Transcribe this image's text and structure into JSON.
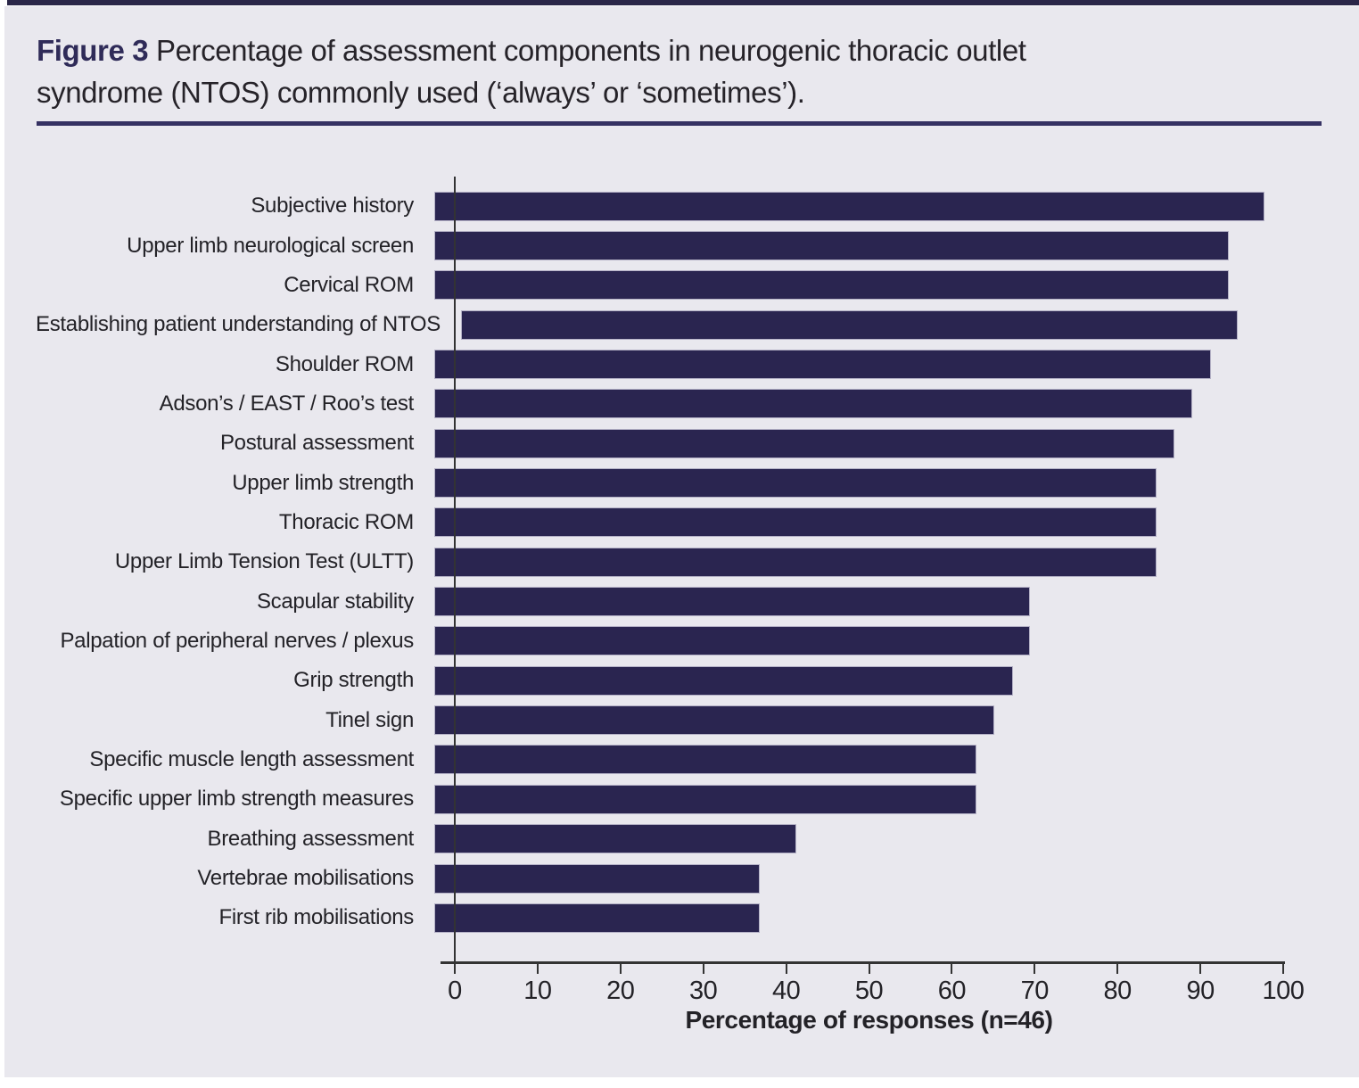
{
  "figure": {
    "label": "Figure 3",
    "title_line1_rest": "Percentage of assessment components in neurogenic thoracic outlet",
    "title_line2": "syndrome (NTOS) commonly used (‘always’ or ‘sometimes’)."
  },
  "chart_data": {
    "type": "bar",
    "orientation": "horizontal",
    "title": "Figure 3 Percentage of assessment components in neurogenic thoracic outlet syndrome (NTOS) commonly used (‘always’ or ‘sometimes’).",
    "categories": [
      "Subjective history",
      "Upper limb neurological screen",
      "Cervical ROM",
      "Establishing patient understanding of NTOS",
      "Shoulder ROM",
      "Adson’s / EAST / Roo’s test",
      "Postural assessment",
      "Upper limb strength",
      "Thoracic ROM",
      "Upper Limb Tension Test (ULTT)",
      "Scapular stability",
      "Palpation of peripheral nerves / plexus",
      "Grip strength",
      "Tinel sign",
      "Specific muscle length assessment",
      "Specific upper limb strength measures",
      "Breathing assessment",
      "Vertebrae mobilisations",
      "First rib mobilisations"
    ],
    "values": [
      100,
      95.7,
      95.7,
      93.5,
      93.5,
      91.3,
      89.1,
      87.0,
      87.0,
      87.0,
      71.7,
      71.7,
      69.6,
      67.4,
      65.2,
      65.2,
      43.5,
      39.1,
      39.1
    ],
    "xlabel": "Percentage of responses (n=46)",
    "x_ticks": [
      0,
      10,
      20,
      30,
      40,
      50,
      60,
      70,
      80,
      90,
      100
    ],
    "xlim": [
      0,
      100
    ],
    "grid": false,
    "legend": "none",
    "bar_color": "#2a2550",
    "panel_background": "#e9e8ee",
    "accent_color": "#353162"
  }
}
